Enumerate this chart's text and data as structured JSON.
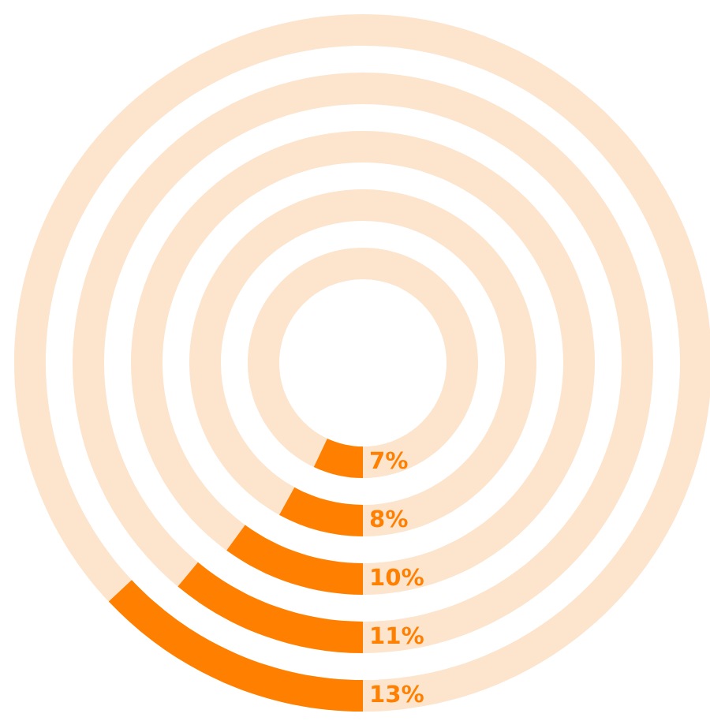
{
  "chart_data": {
    "type": "other",
    "categories": [
      null,
      null,
      null,
      null,
      null
    ],
    "series": [
      {
        "color": "#ff8000",
        "values": [
          7,
          8,
          10,
          11,
          13
        ],
        "value_labels": [
          "7%",
          "8%",
          "10%",
          "11%",
          "13%"
        ]
      }
    ]
  }
}
